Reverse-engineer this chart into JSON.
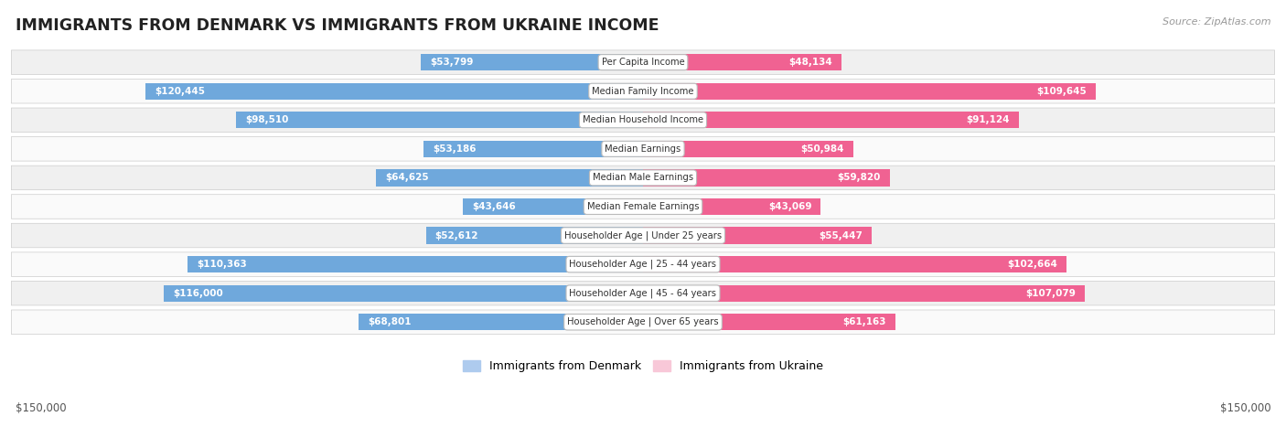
{
  "title": "IMMIGRANTS FROM DENMARK VS IMMIGRANTS FROM UKRAINE INCOME",
  "source": "Source: ZipAtlas.com",
  "categories": [
    "Per Capita Income",
    "Median Family Income",
    "Median Household Income",
    "Median Earnings",
    "Median Male Earnings",
    "Median Female Earnings",
    "Householder Age | Under 25 years",
    "Householder Age | 25 - 44 years",
    "Householder Age | 45 - 64 years",
    "Householder Age | Over 65 years"
  ],
  "denmark_values": [
    53799,
    120445,
    98510,
    53186,
    64625,
    43646,
    52612,
    110363,
    116000,
    68801
  ],
  "ukraine_values": [
    48134,
    109645,
    91124,
    50984,
    59820,
    43069,
    55447,
    102664,
    107079,
    61163
  ],
  "denmark_labels": [
    "$53,799",
    "$120,445",
    "$98,510",
    "$53,186",
    "$64,625",
    "$43,646",
    "$52,612",
    "$110,363",
    "$116,000",
    "$68,801"
  ],
  "ukraine_labels": [
    "$48,134",
    "$109,645",
    "$91,124",
    "$50,984",
    "$59,820",
    "$43,069",
    "$55,447",
    "$102,664",
    "$107,079",
    "$61,163"
  ],
  "denmark_color_light": "#AECBEE",
  "denmark_color_dark": "#6FA8DC",
  "ukraine_color_light": "#F8C8D8",
  "ukraine_color_dark": "#F06292",
  "max_value": 150000,
  "bar_height": 0.58,
  "background_color": "#FFFFFF",
  "row_bg_color_odd": "#F0F0F0",
  "row_bg_color_even": "#FAFAFA",
  "legend_denmark": "Immigrants from Denmark",
  "legend_ukraine": "Immigrants from Ukraine",
  "xlabel_left": "$150,000",
  "xlabel_right": "$150,000",
  "inside_threshold": 30000
}
